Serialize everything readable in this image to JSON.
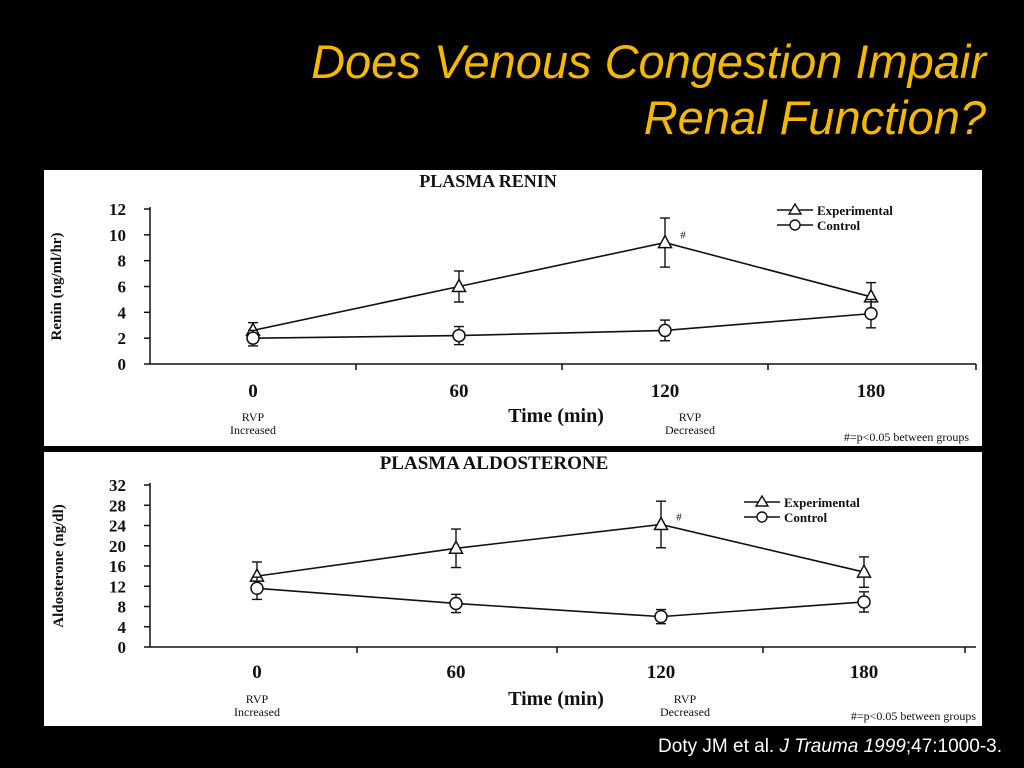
{
  "slide": {
    "title_line1": "Does Venous Congestion Impair",
    "title_line2": "Renal Function?",
    "colors": {
      "background": "#000000",
      "title": "#f5b800",
      "citation": "#ffffff",
      "panel": "#ffffff",
      "ink": "#111111"
    },
    "citation": {
      "authors": "Doty JM et al. ",
      "journal_year": "J Trauma 1999",
      "rest": ";47:1000-3."
    }
  },
  "chart_data": [
    {
      "type": "line",
      "title": "PLASMA RENIN",
      "xlabel": "Time (min)",
      "ylabel": "Renin (ng/ml/hr)",
      "x": [
        0,
        60,
        120,
        180
      ],
      "x_ticklabels": [
        "0",
        "60",
        "120",
        "180"
      ],
      "ylim": [
        0,
        12
      ],
      "y_ticks": [
        0,
        2,
        4,
        6,
        8,
        10,
        12
      ],
      "grid": false,
      "legend_position": "top-right",
      "series": [
        {
          "name": "Experimental",
          "marker": "triangle",
          "values": [
            2.6,
            6.0,
            9.4,
            5.2
          ],
          "errors": [
            0.6,
            1.2,
            1.9,
            1.1
          ]
        },
        {
          "name": "Control",
          "marker": "circle",
          "values": [
            2.0,
            2.2,
            2.6,
            3.9
          ],
          "errors": [
            0.6,
            0.7,
            0.8,
            1.1
          ]
        }
      ],
      "annotations": {
        "significance_mark": "#",
        "significance_x": 120,
        "rvp_increased": "RVP\nIncreased",
        "rvp_decreased": "RVP\nDecreased",
        "footnote": "#=p<0.05 between groups"
      }
    },
    {
      "type": "line",
      "title": "PLASMA ALDOSTERONE",
      "xlabel": "Time (min)",
      "ylabel": "Aldosterone (ng/dl)",
      "x": [
        0,
        60,
        120,
        180
      ],
      "x_ticklabels": [
        "0",
        "60",
        "120",
        "180"
      ],
      "ylim": [
        0,
        32
      ],
      "y_ticks": [
        0,
        4,
        8,
        12,
        16,
        20,
        24,
        28,
        32
      ],
      "grid": false,
      "legend_position": "top-right",
      "series": [
        {
          "name": "Experimental",
          "marker": "triangle",
          "values": [
            14.0,
            19.5,
            24.2,
            14.8
          ],
          "errors": [
            2.8,
            3.8,
            4.6,
            3.0
          ]
        },
        {
          "name": "Control",
          "marker": "circle",
          "values": [
            11.6,
            8.6,
            6.0,
            8.9
          ],
          "errors": [
            2.2,
            1.8,
            1.4,
            2.0
          ]
        }
      ],
      "annotations": {
        "significance_mark": "#",
        "significance_x": 120,
        "rvp_increased": "RVP\nIncreased",
        "rvp_decreased": "RVP\nDecreased",
        "footnote": "#=p<0.05 between groups"
      }
    }
  ]
}
